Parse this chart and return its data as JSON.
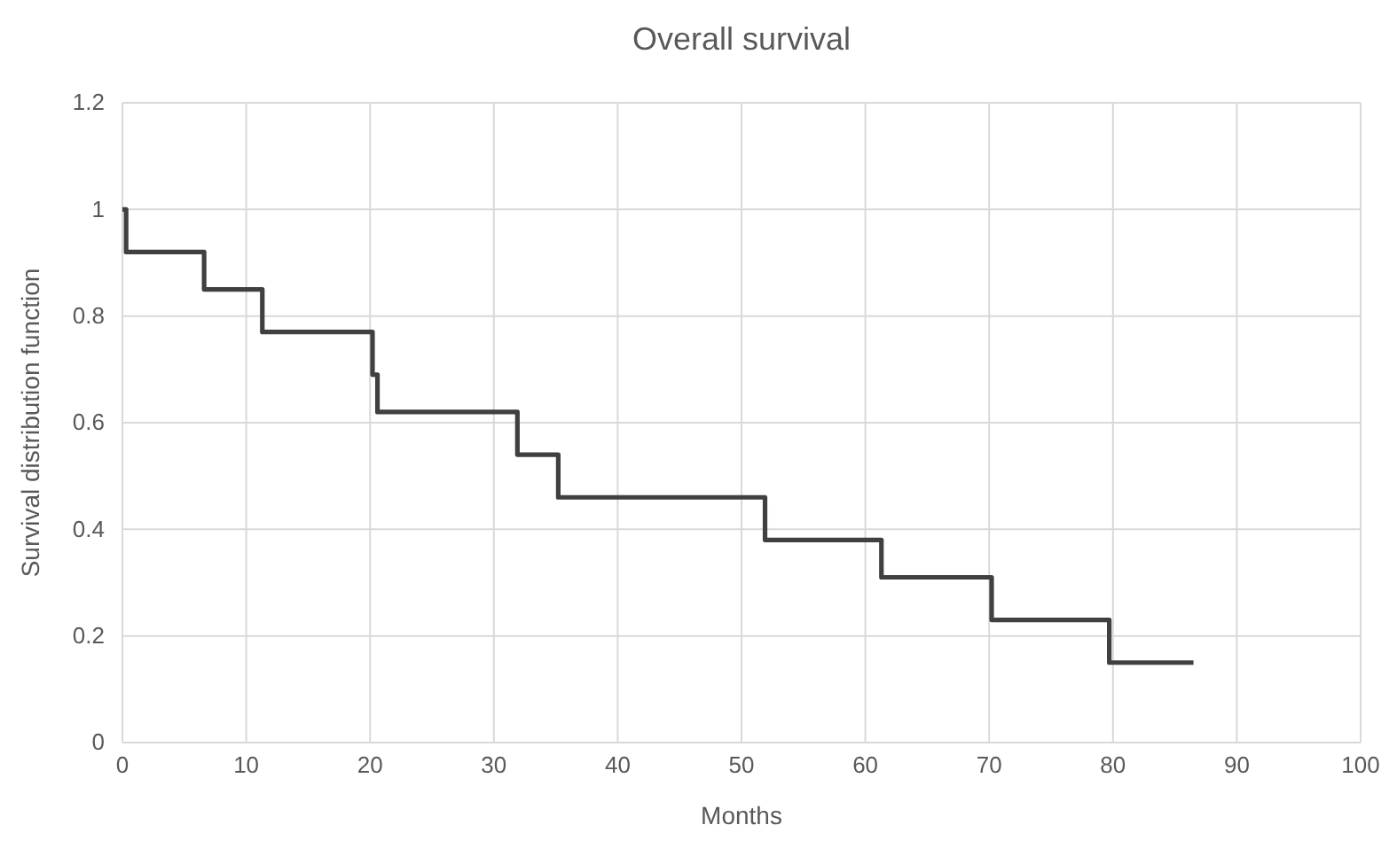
{
  "chart_data": {
    "type": "step",
    "title": "Overall survival",
    "xlabel": "Months",
    "ylabel": "Survival distribution function",
    "x": [
      0,
      0.3,
      6.6,
      11.3,
      20.2,
      20.6,
      31.9,
      35.2,
      51.9,
      61.3,
      70.2,
      79.7,
      86.5
    ],
    "series": [
      {
        "color": "#404040",
        "values": [
          1,
          0.92,
          0.85,
          0.77,
          0.69,
          0.62,
          0.54,
          0.46,
          0.38,
          0.31,
          0.23,
          0.15,
          0.15
        ]
      }
    ],
    "xlim": [
      0,
      100
    ],
    "xticks": [
      0,
      10,
      20,
      30,
      40,
      50,
      60,
      70,
      80,
      90,
      100
    ],
    "ylim": [
      0,
      1.2
    ],
    "yticks": [
      0,
      0.2,
      0.4,
      0.6,
      0.8,
      1,
      1.2
    ],
    "grid": true,
    "marker": "none",
    "line_style": "solid"
  }
}
